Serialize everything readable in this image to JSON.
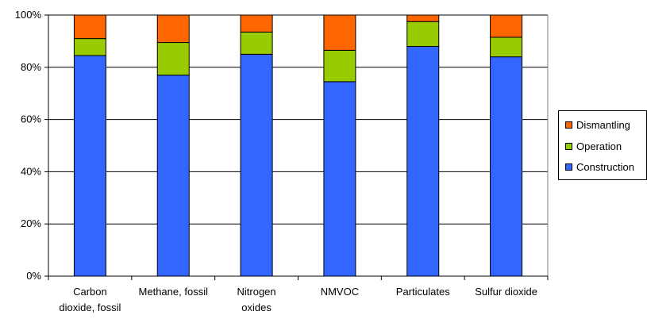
{
  "chart_data": {
    "type": "bar",
    "stacked": true,
    "categories": [
      [
        "Carbon",
        "dioxide, fossil"
      ],
      [
        "Methane, fossil"
      ],
      [
        "Nitrogen",
        "oxides"
      ],
      [
        "NMVOC"
      ],
      [
        "Particulates"
      ],
      [
        "Sulfur dioxide"
      ]
    ],
    "series": [
      {
        "name": "Construction",
        "color": "#3366ff",
        "values": [
          84.5,
          77,
          85,
          74.5,
          88,
          84
        ]
      },
      {
        "name": "Operation",
        "color": "#99cc00",
        "values": [
          6.5,
          12.5,
          8.5,
          12,
          9.5,
          7.5
        ]
      },
      {
        "name": "Dismantling",
        "color": "#ff6600",
        "values": [
          9,
          10.5,
          6.5,
          13.5,
          2.5,
          8.5
        ]
      }
    ],
    "legend_order": [
      "Dismantling",
      "Operation",
      "Construction"
    ],
    "yticks": [
      "0%",
      "20%",
      "40%",
      "60%",
      "80%",
      "100%"
    ],
    "ylim": [
      0,
      100
    ],
    "grid": true,
    "legend_position": "right"
  }
}
